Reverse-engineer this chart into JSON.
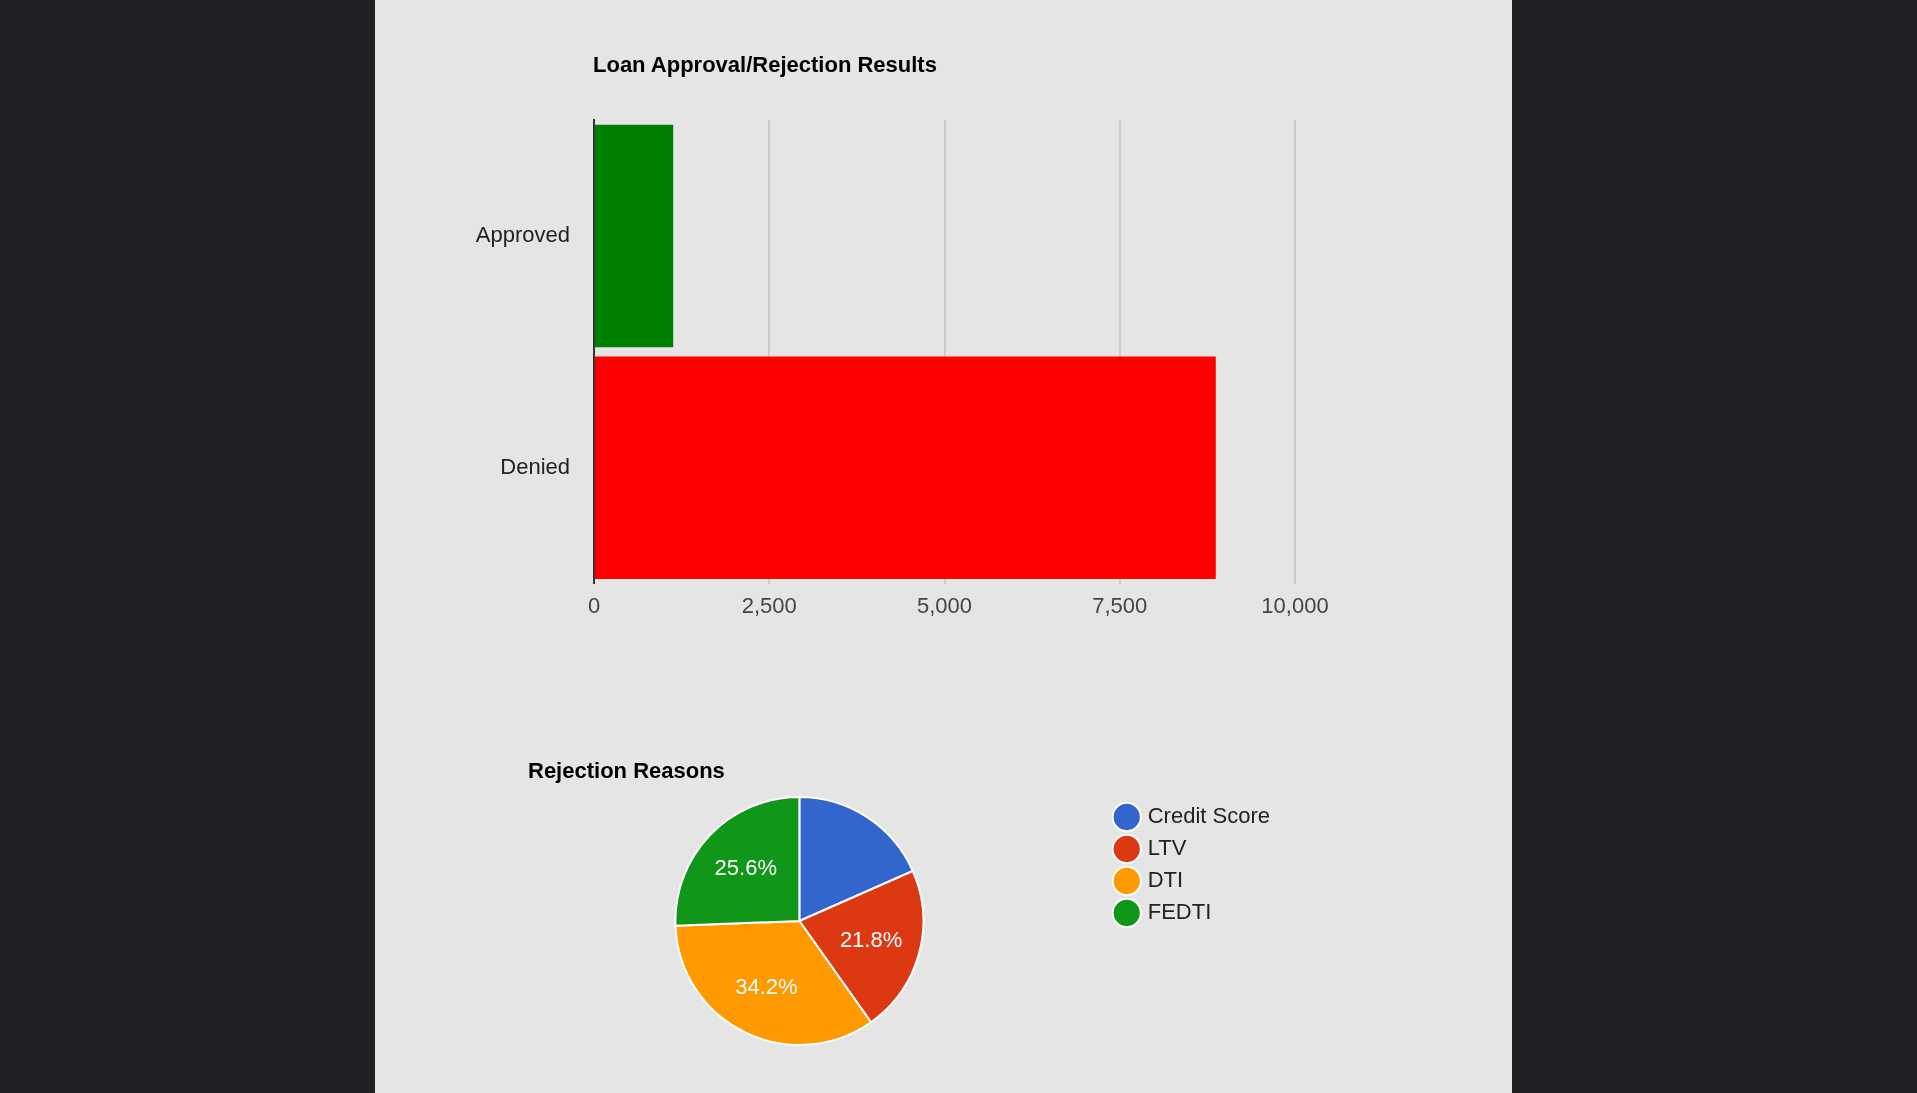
{
  "chart_data": [
    {
      "type": "bar",
      "title": "Loan Approval/Rejection Results",
      "orientation": "horizontal",
      "categories": [
        "Approved",
        "Denied"
      ],
      "values": [
        1130,
        8870
      ],
      "colors": [
        "#008000",
        "#ff0000"
      ],
      "xlim": [
        0,
        10000
      ],
      "xticks": [
        0,
        {
          "value": 2500,
          "label": "2,500"
        },
        {
          "value": 5000,
          "label": "5,000"
        },
        {
          "value": 7500,
          "label": "7,500"
        },
        {
          "value": 10000,
          "label": "10,000"
        }
      ],
      "grid": "x"
    },
    {
      "type": "pie",
      "title": "Rejection Reasons",
      "categories": [
        "Credit Score",
        "LTV",
        "DTI",
        "FEDTI"
      ],
      "values": [
        18.4,
        21.8,
        34.2,
        25.6
      ],
      "colors": [
        "#3366cc",
        "#dc3912",
        "#ff9900",
        "#109618"
      ],
      "value_labels": [
        null,
        "21.8%",
        "34.2%",
        "25.6%"
      ],
      "legend": "top right"
    }
  ]
}
